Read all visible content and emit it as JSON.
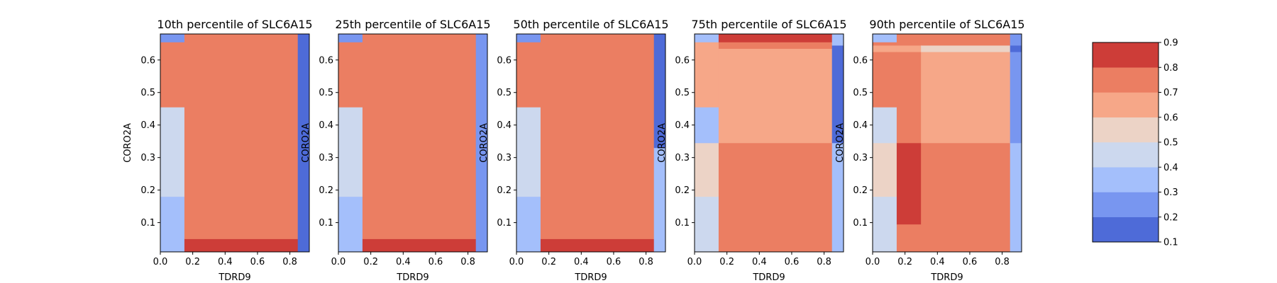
{
  "chart_data": {
    "type": "heatmap",
    "panels": [
      {
        "title": "10th percentile of SLC6A15",
        "xlabel": "TDRD9",
        "ylabel": "CORO2A",
        "xlim": [
          0.0,
          0.92
        ],
        "ylim": [
          0.01,
          0.68
        ],
        "xticks": [
          "0.0",
          "0.2",
          "0.4",
          "0.6",
          "0.8"
        ],
        "yticks": [
          "0.1",
          "0.2",
          "0.3",
          "0.4",
          "0.5",
          "0.6"
        ],
        "regions": [
          {
            "x": [
              0.0,
              0.15
            ],
            "y": [
              0.01,
              0.18
            ],
            "value": 0.35
          },
          {
            "x": [
              0.0,
              0.15
            ],
            "y": [
              0.18,
              0.455
            ],
            "value": 0.45
          },
          {
            "x": [
              0.0,
              0.15
            ],
            "y": [
              0.455,
              0.655
            ],
            "value": 0.75
          },
          {
            "x": [
              0.0,
              0.15
            ],
            "y": [
              0.655,
              0.68
            ],
            "value": 0.25
          },
          {
            "x": [
              0.15,
              0.85
            ],
            "y": [
              0.01,
              0.05
            ],
            "value": 0.85
          },
          {
            "x": [
              0.15,
              0.85
            ],
            "y": [
              0.05,
              0.68
            ],
            "value": 0.75
          },
          {
            "x": [
              0.85,
              0.92
            ],
            "y": [
              0.01,
              0.68
            ],
            "value": 0.15
          }
        ]
      },
      {
        "title": "25th percentile of SLC6A15",
        "xlabel": "TDRD9",
        "ylabel": "CORO2A",
        "xlim": [
          0.0,
          0.92
        ],
        "ylim": [
          0.01,
          0.68
        ],
        "xticks": [
          "0.0",
          "0.2",
          "0.4",
          "0.6",
          "0.8"
        ],
        "yticks": [
          "0.1",
          "0.2",
          "0.3",
          "0.4",
          "0.5",
          "0.6"
        ],
        "regions": [
          {
            "x": [
              0.0,
              0.15
            ],
            "y": [
              0.01,
              0.18
            ],
            "value": 0.35
          },
          {
            "x": [
              0.0,
              0.15
            ],
            "y": [
              0.18,
              0.455
            ],
            "value": 0.45
          },
          {
            "x": [
              0.0,
              0.15
            ],
            "y": [
              0.455,
              0.655
            ],
            "value": 0.75
          },
          {
            "x": [
              0.0,
              0.15
            ],
            "y": [
              0.655,
              0.68
            ],
            "value": 0.25
          },
          {
            "x": [
              0.15,
              0.85
            ],
            "y": [
              0.01,
              0.05
            ],
            "value": 0.85
          },
          {
            "x": [
              0.15,
              0.85
            ],
            "y": [
              0.05,
              0.68
            ],
            "value": 0.75
          },
          {
            "x": [
              0.85,
              0.92
            ],
            "y": [
              0.01,
              0.68
            ],
            "value": 0.25
          }
        ]
      },
      {
        "title": "50th percentile of SLC6A15",
        "xlabel": "TDRD9",
        "ylabel": "CORO2A",
        "xlim": [
          0.0,
          0.92
        ],
        "ylim": [
          0.01,
          0.68
        ],
        "xticks": [
          "0.0",
          "0.2",
          "0.4",
          "0.6",
          "0.8"
        ],
        "yticks": [
          "0.1",
          "0.2",
          "0.3",
          "0.4",
          "0.5",
          "0.6"
        ],
        "regions": [
          {
            "x": [
              0.0,
              0.15
            ],
            "y": [
              0.01,
              0.18
            ],
            "value": 0.35
          },
          {
            "x": [
              0.0,
              0.15
            ],
            "y": [
              0.18,
              0.455
            ],
            "value": 0.45
          },
          {
            "x": [
              0.0,
              0.15
            ],
            "y": [
              0.455,
              0.655
            ],
            "value": 0.75
          },
          {
            "x": [
              0.0,
              0.15
            ],
            "y": [
              0.655,
              0.68
            ],
            "value": 0.25
          },
          {
            "x": [
              0.15,
              0.85
            ],
            "y": [
              0.01,
              0.05
            ],
            "value": 0.85
          },
          {
            "x": [
              0.15,
              0.85
            ],
            "y": [
              0.05,
              0.68
            ],
            "value": 0.75
          },
          {
            "x": [
              0.85,
              0.92
            ],
            "y": [
              0.01,
              0.33
            ],
            "value": 0.35
          },
          {
            "x": [
              0.85,
              0.92
            ],
            "y": [
              0.33,
              0.68
            ],
            "value": 0.15
          }
        ]
      },
      {
        "title": "75th percentile of SLC6A15",
        "xlabel": "TDRD9",
        "ylabel": "CORO2A",
        "xlim": [
          0.0,
          0.92
        ],
        "ylim": [
          0.01,
          0.68
        ],
        "xticks": [
          "0.0",
          "0.2",
          "0.4",
          "0.6",
          "0.8"
        ],
        "yticks": [
          "0.1",
          "0.2",
          "0.3",
          "0.4",
          "0.5",
          "0.6"
        ],
        "regions": [
          {
            "x": [
              0.0,
              0.15
            ],
            "y": [
              0.01,
              0.18
            ],
            "value": 0.43
          },
          {
            "x": [
              0.0,
              0.15
            ],
            "y": [
              0.18,
              0.345
            ],
            "value": 0.52
          },
          {
            "x": [
              0.0,
              0.15
            ],
            "y": [
              0.345,
              0.455
            ],
            "value": 0.35
          },
          {
            "x": [
              0.0,
              0.15
            ],
            "y": [
              0.455,
              0.655
            ],
            "value": 0.65
          },
          {
            "x": [
              0.0,
              0.15
            ],
            "y": [
              0.655,
              0.68
            ],
            "value": 0.35
          },
          {
            "x": [
              0.15,
              0.85
            ],
            "y": [
              0.01,
              0.345
            ],
            "value": 0.75
          },
          {
            "x": [
              0.15,
              0.85
            ],
            "y": [
              0.345,
              0.635
            ],
            "value": 0.65
          },
          {
            "x": [
              0.15,
              0.85
            ],
            "y": [
              0.635,
              0.655
            ],
            "value": 0.75
          },
          {
            "x": [
              0.15,
              0.85
            ],
            "y": [
              0.655,
              0.68
            ],
            "value": 0.85
          },
          {
            "x": [
              0.85,
              0.92
            ],
            "y": [
              0.01,
              0.345
            ],
            "value": 0.35
          },
          {
            "x": [
              0.85,
              0.92
            ],
            "y": [
              0.345,
              0.645
            ],
            "value": 0.15
          },
          {
            "x": [
              0.85,
              0.92
            ],
            "y": [
              0.645,
              0.68
            ],
            "value": 0.35
          }
        ]
      },
      {
        "title": "90th percentile of SLC6A15",
        "xlabel": "TDRD9",
        "ylabel": "CORO2A",
        "xlim": [
          0.0,
          0.92
        ],
        "ylim": [
          0.01,
          0.68
        ],
        "xticks": [
          "0.0",
          "0.2",
          "0.4",
          "0.6",
          "0.8"
        ],
        "yticks": [
          "0.1",
          "0.2",
          "0.3",
          "0.4",
          "0.5",
          "0.6"
        ],
        "regions": [
          {
            "x": [
              0.0,
              0.15
            ],
            "y": [
              0.01,
              0.18
            ],
            "value": 0.45
          },
          {
            "x": [
              0.0,
              0.15
            ],
            "y": [
              0.18,
              0.345
            ],
            "value": 0.55
          },
          {
            "x": [
              0.0,
              0.15
            ],
            "y": [
              0.345,
              0.455
            ],
            "value": 0.45
          },
          {
            "x": [
              0.0,
              0.15
            ],
            "y": [
              0.455,
              0.625
            ],
            "value": 0.75
          },
          {
            "x": [
              0.0,
              0.15
            ],
            "y": [
              0.625,
              0.645
            ],
            "value": 0.65
          },
          {
            "x": [
              0.0,
              0.15
            ],
            "y": [
              0.645,
              0.655
            ],
            "value": 0.75
          },
          {
            "x": [
              0.0,
              0.15
            ],
            "y": [
              0.655,
              0.68
            ],
            "value": 0.35
          },
          {
            "x": [
              0.15,
              0.3
            ],
            "y": [
              0.01,
              0.095
            ],
            "value": 0.75
          },
          {
            "x": [
              0.15,
              0.3
            ],
            "y": [
              0.095,
              0.345
            ],
            "value": 0.85
          },
          {
            "x": [
              0.15,
              0.3
            ],
            "y": [
              0.345,
              0.625
            ],
            "value": 0.75
          },
          {
            "x": [
              0.15,
              0.3
            ],
            "y": [
              0.625,
              0.645
            ],
            "value": 0.65
          },
          {
            "x": [
              0.15,
              0.3
            ],
            "y": [
              0.645,
              0.68
            ],
            "value": 0.75
          },
          {
            "x": [
              0.3,
              0.85
            ],
            "y": [
              0.01,
              0.345
            ],
            "value": 0.75
          },
          {
            "x": [
              0.3,
              0.85
            ],
            "y": [
              0.345,
              0.625
            ],
            "value": 0.65
          },
          {
            "x": [
              0.3,
              0.85
            ],
            "y": [
              0.625,
              0.645
            ],
            "value": 0.55
          },
          {
            "x": [
              0.3,
              0.85
            ],
            "y": [
              0.645,
              0.68
            ],
            "value": 0.75
          },
          {
            "x": [
              0.85,
              0.92
            ],
            "y": [
              0.01,
              0.345
            ],
            "value": 0.35
          },
          {
            "x": [
              0.85,
              0.92
            ],
            "y": [
              0.345,
              0.625
            ],
            "value": 0.25
          },
          {
            "x": [
              0.85,
              0.92
            ],
            "y": [
              0.625,
              0.645
            ],
            "value": 0.15
          },
          {
            "x": [
              0.85,
              0.92
            ],
            "y": [
              0.645,
              0.68
            ],
            "value": 0.25
          }
        ]
      }
    ],
    "colorbar": {
      "levels": [
        0.1,
        0.2,
        0.3,
        0.4,
        0.5,
        0.6,
        0.7,
        0.8,
        0.9
      ],
      "ticks": [
        "0.1",
        "0.2",
        "0.3",
        "0.4",
        "0.5",
        "0.6",
        "0.7",
        "0.8",
        "0.9"
      ],
      "colors": [
        "#4e6bd8",
        "#7896f0",
        "#a4bffb",
        "#ccd8ee",
        "#ecd3c6",
        "#f6a788",
        "#eb7e62",
        "#cd3d38"
      ]
    }
  }
}
